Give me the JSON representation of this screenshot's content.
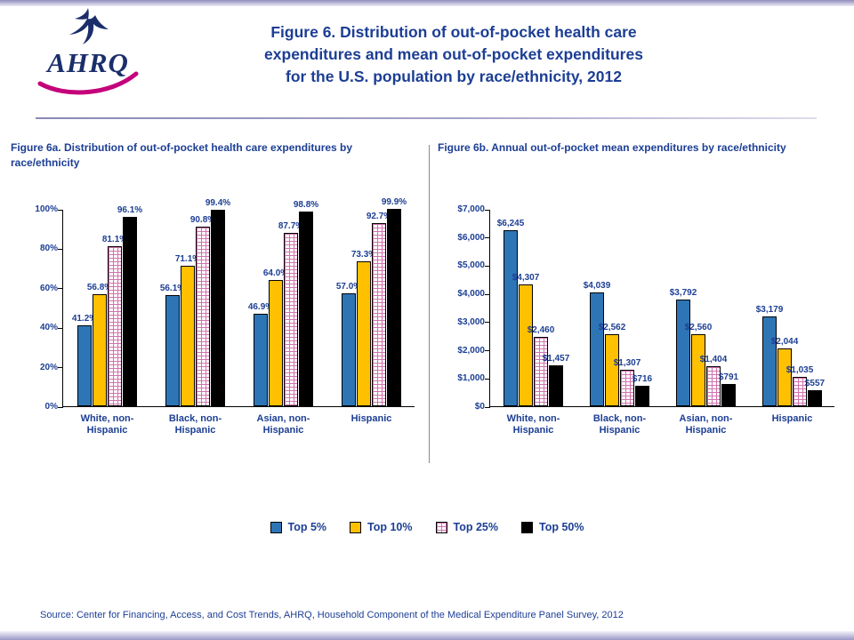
{
  "header": {
    "logo_text": "AHRQ",
    "title_lines": [
      "Figure 6. Distribution of out-of-pocket health care",
      "expenditures and mean out-of-pocket expenditures",
      "for the U.S. population by race/ethnicity, 2012"
    ]
  },
  "colors": {
    "title_navy": "#1c3e94",
    "top5_blue": "#2E75B6",
    "top10_gold": "#FFC000",
    "top25_pattern_pink": "#D173AE",
    "top50_black": "#000000",
    "logo_navy": "#1B2E6B",
    "logo_magenta": "#C4007A"
  },
  "chart_data": [
    {
      "type": "bar",
      "title": "Figure 6a. Distribution of out-of-pocket health care expenditures by race/ethnicity",
      "categories": [
        "White, non-Hispanic",
        "Black, non-Hispanic",
        "Asian, non-Hispanic",
        "Hispanic"
      ],
      "series": [
        {
          "name": "Top 5%",
          "style": "solid",
          "color": "#2E75B6",
          "values": [
            41.2,
            56.1,
            46.9,
            57.0
          ],
          "labels": [
            "41.2%",
            "56.1%",
            "46.9%",
            "57.0%"
          ]
        },
        {
          "name": "Top 10%",
          "style": "solid",
          "color": "#FFC000",
          "values": [
            56.8,
            71.1,
            64.0,
            73.3
          ],
          "labels": [
            "56.8%",
            "71.1%",
            "64.0%",
            "73.3%"
          ]
        },
        {
          "name": "Top 25%",
          "style": "pattern",
          "color": "#D173AE",
          "values": [
            81.1,
            90.8,
            87.7,
            92.7
          ],
          "labels": [
            "81.1%",
            "90.8%",
            "87.7%",
            "92.7%"
          ]
        },
        {
          "name": "Top 50%",
          "style": "solid",
          "color": "#000000",
          "values": [
            96.1,
            99.4,
            98.8,
            99.9
          ],
          "labels": [
            "96.1%",
            "99.4%",
            "98.8%",
            "99.9%"
          ]
        }
      ],
      "xlabel": "",
      "ylabel": "",
      "ylim": [
        0,
        100
      ],
      "yticks": [
        "0%",
        "20%",
        "40%",
        "60%",
        "80%",
        "100%"
      ],
      "grid": false,
      "legend_position": "shared-bottom"
    },
    {
      "type": "bar",
      "title": "Figure 6b. Annual out-of-pocket mean expenditures by race/ethnicity",
      "categories": [
        "White, non-Hispanic",
        "Black, non-Hispanic",
        "Asian, non-Hispanic",
        "Hispanic"
      ],
      "series": [
        {
          "name": "Top 5%",
          "style": "solid",
          "color": "#2E75B6",
          "values": [
            6245,
            4039,
            3792,
            3179
          ],
          "labels": [
            "$6,245",
            "$4,039",
            "$3,792",
            "$3,179"
          ]
        },
        {
          "name": "Top 10%",
          "style": "solid",
          "color": "#FFC000",
          "values": [
            4307,
            2562,
            2560,
            2044
          ],
          "labels": [
            "$4,307",
            "$2,562",
            "$2,560",
            "$2,044"
          ]
        },
        {
          "name": "Top 25%",
          "style": "pattern",
          "color": "#D173AE",
          "values": [
            2460,
            1307,
            1404,
            1035
          ],
          "labels": [
            "$2,460",
            "$1,307",
            "$1,404",
            "$1,035"
          ]
        },
        {
          "name": "Top 50%",
          "style": "solid",
          "color": "#000000",
          "values": [
            1457,
            716,
            791,
            557
          ],
          "labels": [
            "$1,457",
            "$716",
            "$791",
            "$557"
          ]
        }
      ],
      "xlabel": "",
      "ylabel": "",
      "ylim": [
        0,
        7000
      ],
      "yticks": [
        "$0",
        "$1,000",
        "$2,000",
        "$3,000",
        "$4,000",
        "$5,000",
        "$6,000",
        "$7,000"
      ],
      "grid": false,
      "legend_position": "shared-bottom"
    }
  ],
  "legend": [
    {
      "label": "Top 5%",
      "style": "solid",
      "color": "#2E75B6"
    },
    {
      "label": "Top 10%",
      "style": "solid",
      "color": "#FFC000"
    },
    {
      "label": "Top 25%",
      "style": "pattern",
      "color": "#D173AE"
    },
    {
      "label": "Top 50%",
      "style": "solid",
      "color": "#000000"
    }
  ],
  "source": "Source: Center for Financing, Access, and Cost Trends, AHRQ, Household Component of the Medical Expenditure Panel Survey, 2012"
}
